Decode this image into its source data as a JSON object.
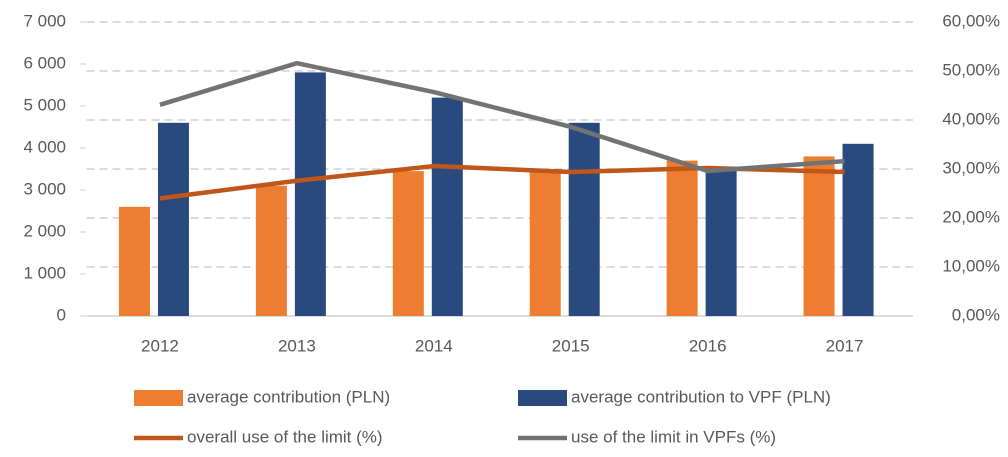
{
  "chart_data": {
    "type": "bar",
    "categories": [
      "2012",
      "2013",
      "2014",
      "2015",
      "2016",
      "2017"
    ],
    "series": [
      {
        "name": "average contribution (PLN)",
        "type": "bar",
        "color": "#ed7d31",
        "values": [
          2600,
          3100,
          3450,
          3500,
          3700,
          3800
        ]
      },
      {
        "name": "average contribution to VPF (PLN)",
        "type": "bar",
        "color": "#2a4a7f",
        "values": [
          4600,
          5800,
          5200,
          4600,
          3500,
          4100
        ]
      },
      {
        "name": "overall use of the limit (%)",
        "type": "line",
        "axis": "y2",
        "color": "#c0561a",
        "values": [
          24,
          27.6,
          30.6,
          29.4,
          30.2,
          29.4
        ]
      },
      {
        "name": "use of the limit in VPFs (%)",
        "type": "line",
        "axis": "y2",
        "color": "#737373",
        "values": [
          43.1,
          51.6,
          45.7,
          38.6,
          29.6,
          31.6
        ]
      }
    ],
    "ylim": [
      0,
      7000
    ],
    "yticks": [
      0,
      {
        "value": 1000,
        "label": "1 000"
      },
      {
        "value": 2000,
        "label": "2 000"
      },
      {
        "value": 3000,
        "label": "3 000"
      },
      {
        "value": 4000,
        "label": "4 000"
      },
      {
        "value": 5000,
        "label": "5 000"
      },
      {
        "value": 6000,
        "label": "6 000"
      },
      {
        "value": 7000,
        "label": "7 000"
      }
    ],
    "y2lim": [
      0,
      60
    ],
    "y2ticks": [
      {
        "value": 0,
        "label": "0,00%"
      },
      {
        "value": 10,
        "label": "10,00%"
      },
      {
        "value": 20,
        "label": "20,00%"
      },
      {
        "value": 30,
        "label": "30,00%"
      },
      {
        "value": 40,
        "label": "40,00%"
      },
      {
        "value": 50,
        "label": "50,00%"
      },
      {
        "value": 60,
        "label": "60,00%"
      }
    ],
    "grid": true,
    "legend": "bottom"
  }
}
